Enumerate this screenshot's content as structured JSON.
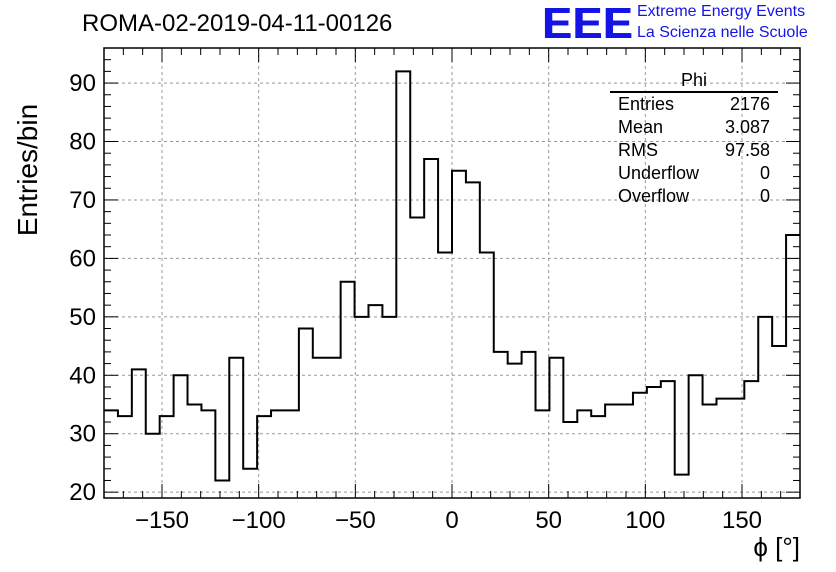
{
  "header": {
    "run_title": "ROMA-02-2019-04-11-00126",
    "logo_letters": "EEE",
    "logo_line1": "Extreme Energy Events",
    "logo_line2": "La Scienza nelle Scuole",
    "logo_color": "#1414e6"
  },
  "stats": {
    "title": "Phi",
    "rows": [
      {
        "label": "Entries",
        "value": "2176"
      },
      {
        "label": "Mean",
        "value": "3.087"
      },
      {
        "label": "RMS",
        "value": "97.58"
      },
      {
        "label": "Underflow",
        "value": "0"
      },
      {
        "label": "Overflow",
        "value": "0"
      }
    ]
  },
  "chart_data": {
    "type": "histogram",
    "xlabel": "ϕ [°]",
    "ylabel": "Entries/bin",
    "xlim": [
      -180,
      180
    ],
    "ylim": [
      19,
      96
    ],
    "bin_width": 7.2,
    "x_ticks": [
      -150,
      -100,
      -50,
      0,
      50,
      100,
      150
    ],
    "y_ticks": [
      20,
      30,
      40,
      50,
      60,
      70,
      80,
      90
    ],
    "grid": true,
    "line_color": "#000000",
    "values": [
      34,
      33,
      41,
      30,
      33,
      40,
      35,
      34,
      22,
      43,
      24,
      33,
      34,
      34,
      48,
      43,
      43,
      56,
      50,
      52,
      50,
      92,
      67,
      77,
      61,
      75,
      73,
      61,
      44,
      42,
      44,
      34,
      43,
      32,
      34,
      33,
      35,
      35,
      37,
      38,
      39,
      23,
      40,
      35,
      36,
      36,
      39,
      50,
      45,
      64
    ]
  }
}
